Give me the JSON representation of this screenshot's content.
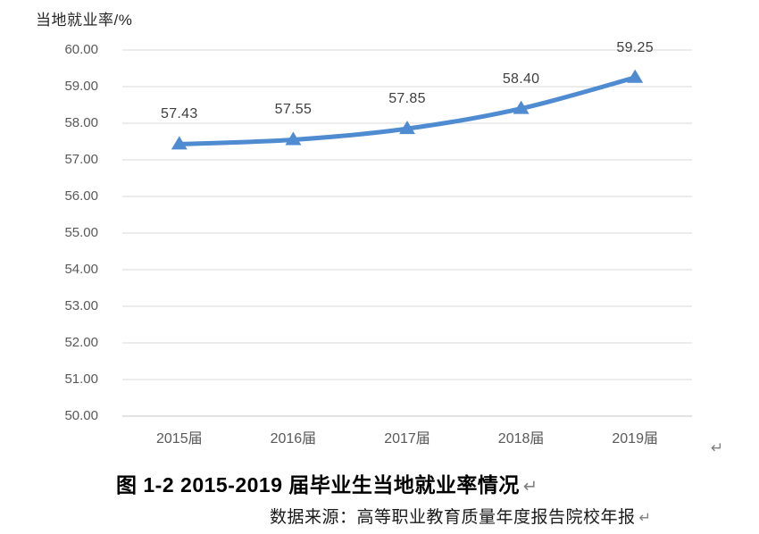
{
  "chart_data": {
    "type": "line",
    "title": "当地就业率/%",
    "categories": [
      "2015届",
      "2016届",
      "2017届",
      "2018届",
      "2019届"
    ],
    "series": [
      {
        "name": "当地就业率",
        "values": [
          57.43,
          57.55,
          57.85,
          58.4,
          59.25
        ]
      }
    ],
    "data_labels": [
      "57.43",
      "57.55",
      "57.85",
      "58.40",
      "59.25"
    ],
    "xlabel": "",
    "ylabel": "当地就业率/%",
    "ylim": [
      50,
      60
    ],
    "ytick_interval": 1,
    "ytick_labels": [
      "60.00",
      "59.00",
      "58.00",
      "57.00",
      "56.00",
      "55.00",
      "54.00",
      "53.00",
      "52.00",
      "51.00",
      "50.00"
    ],
    "grid": true,
    "legend": "none",
    "marker": "triangle",
    "colors": {
      "line": "#4f8bd1",
      "gridline": "#d9d9d9",
      "axis_line": "#c6c6c6",
      "tick_label": "#595959",
      "data_label": "#3f3f3f",
      "axis_title": "#262626"
    }
  },
  "caption": {
    "text": "图 1-2 2015-2019 届毕业生当地就业率情况",
    "mark": "↵"
  },
  "source": {
    "text": "数据来源：高等职业教育质量年度报告院校年报",
    "mark": "↵"
  },
  "chart_end_mark": "↵"
}
